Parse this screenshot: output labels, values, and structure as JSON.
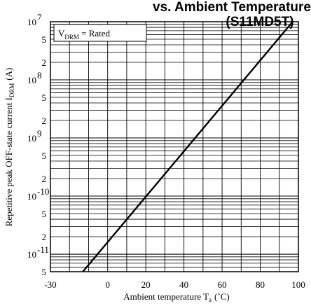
{
  "header": {
    "title_partial": "vs. Ambient Temperature",
    "model": "(S11MD5T)"
  },
  "annotation": {
    "main": "V",
    "sub": "DRM",
    "rest": " = Rated"
  },
  "chart_data": {
    "type": "line",
    "title": "(S11MD5T)",
    "xlabel": "Ambient temperature T a (˚C)",
    "xlabel_main": "Ambient temperature T",
    "xlabel_sub": "a",
    "xlabel_unit": "(˚C)",
    "ylabel": "Repetitive peak OFF-state current I DRM (A)",
    "ylabel_main": "Repetitive peak OFF-state current I",
    "ylabel_sub": "DRM",
    "ylabel_unit": "(A)",
    "xlim": [
      -30,
      100
    ],
    "ylim": [
      5e-12,
      1e-07
    ],
    "y_scale": "log",
    "grid": true,
    "x_ticks": [
      -30,
      0,
      20,
      40,
      60,
      80,
      100
    ],
    "x_tick_labels": [
      "-30",
      "0",
      "20",
      "40",
      "60",
      "80",
      "100"
    ],
    "y_major_ticks": [
      {
        "value": 1e-07,
        "mant": "10",
        "exp": " 7"
      },
      {
        "value": 1e-08,
        "mant": "10",
        "exp": " 8"
      },
      {
        "value": 1e-09,
        "mant": "10",
        "exp": " 9"
      },
      {
        "value": 1e-10,
        "mant": "10",
        "exp": "-10"
      },
      {
        "value": 1e-11,
        "mant": "10",
        "exp": "-11"
      }
    ],
    "y_minor_labeled": [
      {
        "value": 5e-08,
        "label": "5"
      },
      {
        "value": 2e-08,
        "label": "2"
      },
      {
        "value": 5e-09,
        "label": "5"
      },
      {
        "value": 2e-09,
        "label": "2"
      },
      {
        "value": 5e-10,
        "label": "5"
      },
      {
        "value": 2e-10,
        "label": "2"
      },
      {
        "value": 5e-11,
        "label": "5"
      },
      {
        "value": 2e-11,
        "label": "2"
      },
      {
        "value": 5e-12,
        "label": "5"
      }
    ],
    "series": [
      {
        "color": "#000000",
        "x": [
          -13,
          97
        ],
        "y": [
          5e-12,
          1e-07
        ]
      }
    ]
  }
}
